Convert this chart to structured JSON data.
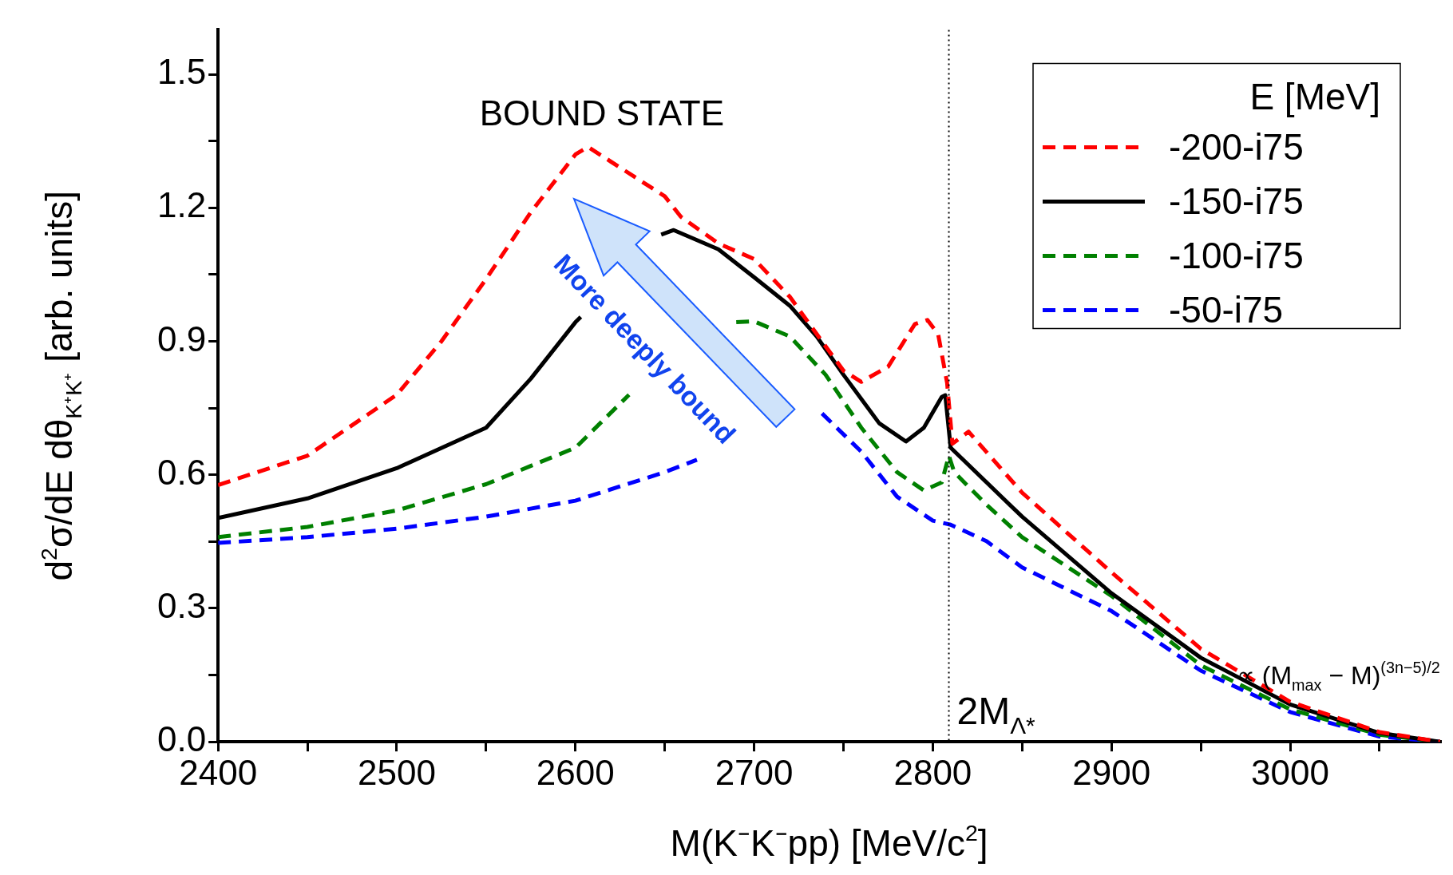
{
  "chart_data": {
    "type": "line",
    "xlabel": "M(K⁻K⁻pp) [MeV/c$^{2}$]",
    "ylabel": "d$^{2}$σ/dE dθ$_{K⁺K⁺}$ [arb. units]",
    "legend_title": "E [MeV]",
    "legend": "top right",
    "grid": false,
    "marker": "none",
    "xlim": [
      2400,
      3084
    ],
    "xticks": [
      2400,
      {
        "value": 2450,
        "label": null
      },
      2500,
      {
        "value": 2550,
        "label": null
      },
      2600,
      {
        "value": 2650,
        "label": null
      },
      2700,
      {
        "value": 2750,
        "label": null
      },
      2800,
      {
        "value": 2850,
        "label": null
      },
      2900,
      {
        "value": 2950,
        "label": null
      },
      3000,
      {
        "value": 3050,
        "label": null
      }
    ],
    "ylim": [
      0,
      1.6
    ],
    "yticks": [
      {
        "value": 0,
        "label": "0.0"
      },
      {
        "value": 0.15,
        "label": null
      },
      0.3,
      {
        "value": 0.45,
        "label": null
      },
      0.6,
      {
        "value": 0.75,
        "label": null
      },
      0.9,
      {
        "value": 1.05,
        "label": null
      },
      1.2,
      {
        "value": 1.35,
        "label": null
      },
      1.5
    ],
    "series": [
      {
        "name": "-200-i75",
        "color": "#ff0000",
        "line_style": "dashed",
        "x": [
          2400,
          2450,
          2500,
          2525,
          2550,
          2575,
          2600,
          2607,
          2650,
          2659,
          2680,
          2700,
          2720,
          2740,
          2750,
          2760,
          2775,
          2790,
          2797,
          2803,
          2808,
          2811,
          2820,
          2850,
          2900,
          2950,
          3000,
          3050,
          3084
        ],
        "values": [
          0.577,
          0.643,
          0.78,
          0.9,
          1.04,
          1.19,
          1.32,
          1.337,
          1.226,
          1.18,
          1.12,
          1.085,
          1.0,
          0.889,
          0.834,
          0.809,
          0.843,
          0.939,
          0.948,
          0.916,
          0.807,
          0.67,
          0.697,
          0.56,
          0.381,
          0.209,
          0.09,
          0.022,
          0
        ]
      },
      {
        "name": "-150-i75",
        "color": "#000000",
        "line_style": "solid",
        "x": [
          2400,
          2450,
          2500,
          2550,
          2575,
          2600,
          2603,
          2625,
          2648,
          2655,
          2680,
          2700,
          2720,
          2735,
          2750,
          2770,
          2785,
          2795,
          2805,
          2807,
          2810,
          2850,
          2900,
          2950,
          3000,
          3050,
          3084
        ],
        "values": [
          0.503,
          0.547,
          0.615,
          0.706,
          0.816,
          0.943,
          0.955,
          null,
          1.14,
          1.15,
          1.107,
          1.044,
          0.98,
          0.911,
          0.825,
          0.716,
          0.675,
          0.706,
          0.775,
          0.779,
          0.661,
          0.506,
          0.334,
          0.189,
          0.084,
          0.02,
          0
        ]
      },
      {
        "name": "-100-i75",
        "color": "#008000",
        "line_style": "dashed",
        "x": [
          2400,
          2450,
          2500,
          2550,
          2600,
          2630,
          2660,
          2690,
          2700,
          2720,
          2740,
          2760,
          2780,
          2795,
          2805,
          2809,
          2812,
          2830,
          2850,
          2900,
          2950,
          3000,
          3050,
          3084
        ],
        "values": [
          0.46,
          0.483,
          0.52,
          0.579,
          0.661,
          0.78,
          null,
          0.943,
          0.945,
          0.911,
          0.825,
          0.706,
          0.606,
          0.565,
          0.583,
          0.643,
          0.606,
          0.533,
          0.46,
          0.328,
          0.172,
          0.073,
          0.016,
          0
        ]
      },
      {
        "name": "-50-i75",
        "color": "#0000ff",
        "line_style": "dashed",
        "x": [
          2400,
          2450,
          2500,
          2550,
          2600,
          2650,
          2668,
          2700,
          2738,
          2760,
          2780,
          2800,
          2810,
          2830,
          2850,
          2900,
          2950,
          3000,
          3050,
          3084
        ],
        "values": [
          0.447,
          0.46,
          0.479,
          0.506,
          0.542,
          0.606,
          0.634,
          null,
          0.738,
          0.652,
          0.551,
          0.497,
          0.488,
          0.451,
          0.392,
          0.294,
          0.16,
          0.067,
          0.012,
          0
        ]
      }
    ],
    "ref_lines": [
      {
        "axis": "x",
        "value": 2809,
        "label": "2M$_{Λ*}$",
        "color": "#000000",
        "line_style": "dotted"
      }
    ],
    "annotations": [
      "BOUND STATE",
      "More deeply bound",
      {
        "text": "∝ (M$_{max}$ − M)$^{(3n−5)/2}$",
        "x": 2970,
        "y": 0.13
      }
    ]
  }
}
